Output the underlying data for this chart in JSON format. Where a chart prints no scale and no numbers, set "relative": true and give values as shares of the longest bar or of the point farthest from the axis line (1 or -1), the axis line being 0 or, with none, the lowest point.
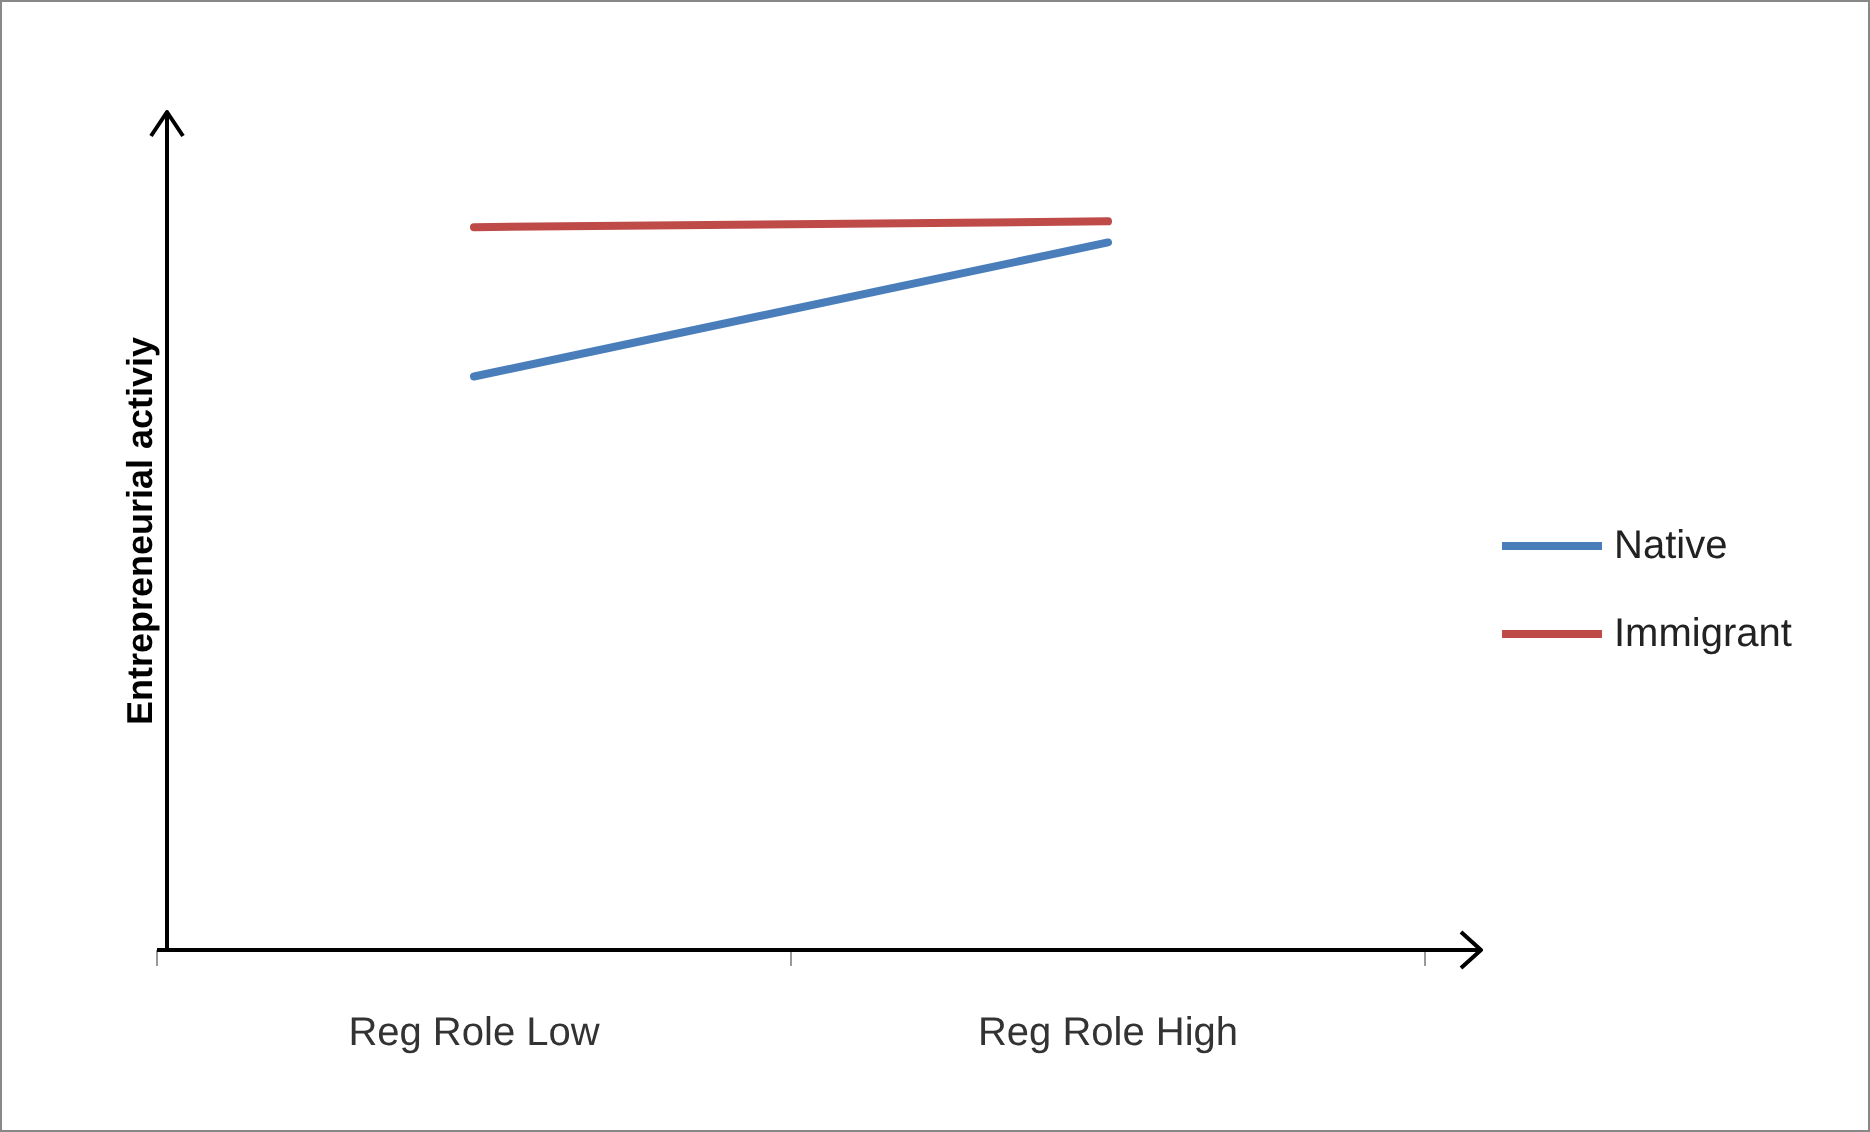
{
  "chart_data": {
    "type": "line",
    "relative": true,
    "ylabel": "Entrepreneurial activiy",
    "categories": [
      "Reg Role Low",
      "Reg Role High"
    ],
    "series": [
      {
        "name": "Native",
        "color": "#4a7ebb",
        "values": [
          0.787,
          0.971
        ]
      },
      {
        "name": "Immigrant",
        "color": "#be4b48",
        "values": [
          0.992,
          1
        ]
      }
    ],
    "legend": "right",
    "grid": false,
    "marker": "none",
    "line_style": "solid"
  }
}
